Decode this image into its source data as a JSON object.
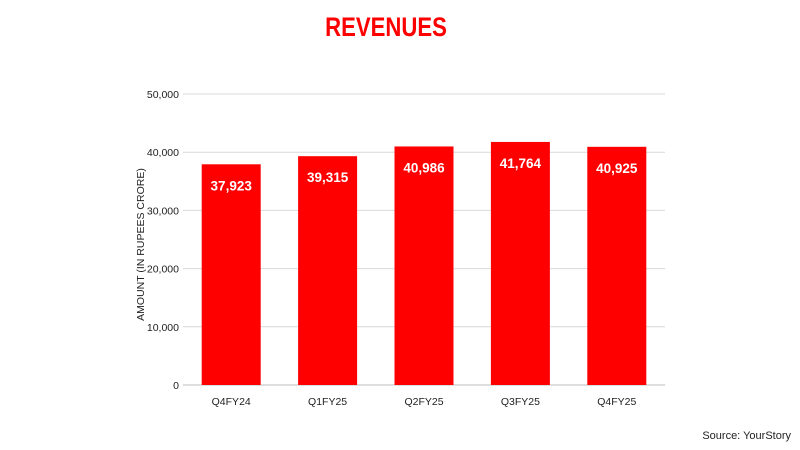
{
  "title": "REVENUES",
  "source": "Source: YourStory",
  "colors": {
    "accent": "#ff0000",
    "title": "#ff0000",
    "bar": "#ff0000",
    "bar_label": "#ffffff",
    "grid": "#d9d9d9",
    "axis_text": "#222222"
  },
  "chart_data": {
    "type": "bar",
    "title": "REVENUES",
    "xlabel": "",
    "ylabel": "AMOUNT (IN RUPEES CRORE)",
    "categories": [
      "Q4FY24",
      "Q1FY25",
      "Q2FY25",
      "Q3FY25",
      "Q4FY25"
    ],
    "values": [
      37923,
      39315,
      40986,
      41764,
      40925
    ],
    "value_labels": [
      "37,923",
      "39,315",
      "40,986",
      "41,764",
      "40,925"
    ],
    "ylim": [
      0,
      50000
    ],
    "yticks": [
      0,
      10000,
      20000,
      30000,
      40000,
      50000
    ],
    "ytick_labels": [
      "0",
      "10,000",
      "20,000",
      "30,000",
      "40,000",
      "50,000"
    ],
    "grid": true,
    "legend": "none"
  }
}
